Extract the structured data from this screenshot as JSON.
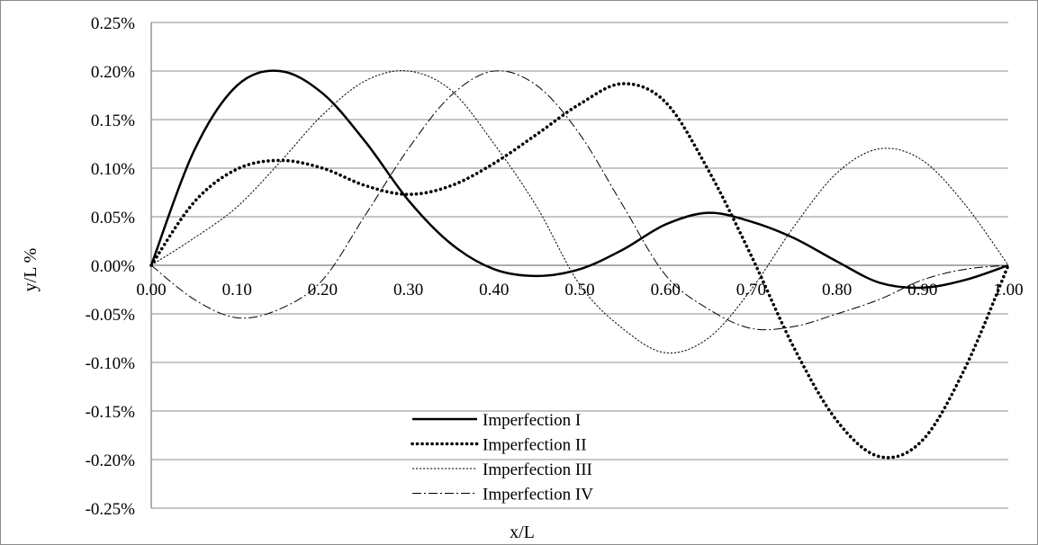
{
  "chart_data": {
    "type": "line",
    "xlabel": "x/L",
    "ylabel": "y/L %",
    "xlim": [
      0,
      1
    ],
    "ylim": [
      -0.25,
      0.25
    ],
    "x_ticks": [
      0,
      0.1,
      0.2,
      0.3,
      0.4,
      0.5,
      0.6,
      0.7,
      0.8,
      0.9,
      1.0
    ],
    "x_tick_labels": [
      "0.00",
      "0.10",
      "0.20",
      "0.30",
      "0.40",
      "0.50",
      "0.60",
      "0.70",
      "0.80",
      "0.90",
      "1.00"
    ],
    "y_ticks": [
      0.25,
      0.2,
      0.15,
      0.1,
      0.05,
      0,
      -0.05,
      -0.1,
      -0.15,
      -0.2,
      -0.25
    ],
    "y_tick_labels": [
      "0.25%",
      "0.20%",
      "0.15%",
      "0.10%",
      "0.05%",
      "0.00%",
      "-0.05%",
      "-0.10%",
      "-0.15%",
      "-0.20%",
      "-0.25%"
    ],
    "grid": "horizontal",
    "legend_position": "bottom-center",
    "x": [
      0,
      0.05,
      0.1,
      0.15,
      0.2,
      0.25,
      0.3,
      0.35,
      0.4,
      0.45,
      0.5,
      0.55,
      0.6,
      0.65,
      0.7,
      0.75,
      0.8,
      0.85,
      0.9,
      0.95,
      1.0
    ],
    "series": [
      {
        "name": "Imperfection I",
        "style": "solid",
        "values": [
          0,
          0.118,
          0.185,
          0.2,
          0.177,
          0.127,
          0.067,
          0.022,
          -0.004,
          -0.011,
          -0.004,
          0.016,
          0.042,
          0.054,
          0.045,
          0.028,
          0.004,
          -0.018,
          -0.023,
          -0.015,
          0
        ]
      },
      {
        "name": "Imperfection II",
        "style": "dotted",
        "values": [
          0,
          0.065,
          0.099,
          0.108,
          0.1,
          0.082,
          0.073,
          0.082,
          0.105,
          0.135,
          0.166,
          0.187,
          0.168,
          0.098,
          0.01,
          -0.085,
          -0.16,
          -0.197,
          -0.18,
          -0.105,
          0
        ]
      },
      {
        "name": "Imperfection III",
        "style": "dashed",
        "values": [
          0,
          0.028,
          0.06,
          0.106,
          0.155,
          0.19,
          0.2,
          0.18,
          0.125,
          0.06,
          -0.02,
          -0.065,
          -0.09,
          -0.075,
          -0.025,
          0.04,
          0.095,
          0.12,
          0.108,
          0.062,
          0
        ]
      },
      {
        "name": "Imperfection IV",
        "style": "dash-dot",
        "values": [
          0,
          -0.035,
          -0.054,
          -0.045,
          -0.015,
          0.052,
          0.12,
          0.175,
          0.2,
          0.185,
          0.135,
          0.062,
          -0.01,
          -0.045,
          -0.065,
          -0.063,
          -0.05,
          -0.035,
          -0.015,
          -0.004,
          0
        ]
      }
    ]
  }
}
